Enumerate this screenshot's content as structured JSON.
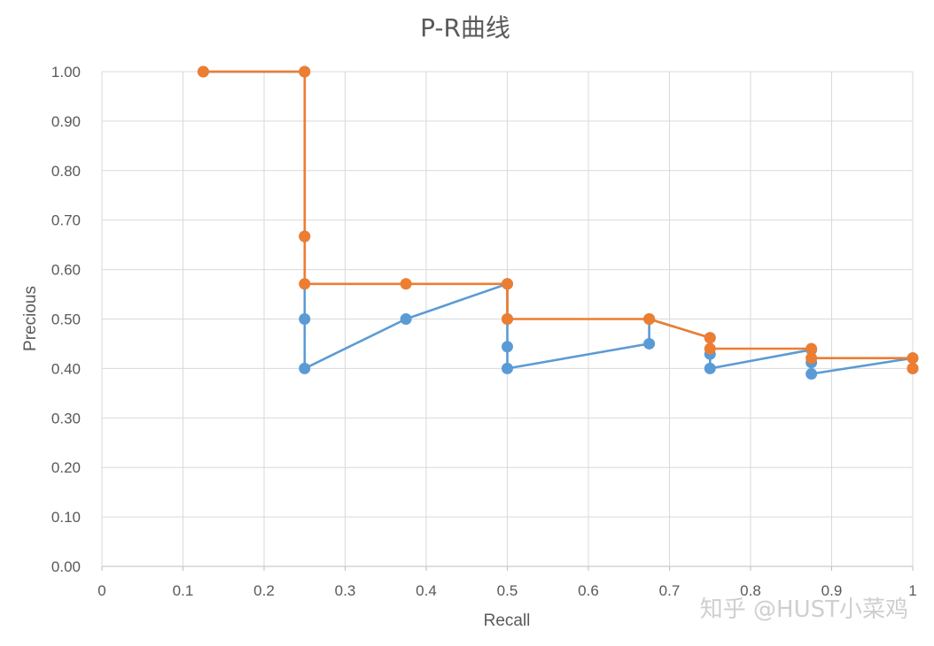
{
  "chart_data": {
    "type": "line",
    "title": "P-R曲线",
    "xlabel": "Recall",
    "ylabel": "Precious",
    "xlim": [
      0,
      1
    ],
    "ylim": [
      0,
      1
    ],
    "x_ticks": [
      "0",
      "0.1",
      "0.2",
      "0.3",
      "0.4",
      "0.5",
      "0.6",
      "0.7",
      "0.8",
      "0.9",
      "1"
    ],
    "y_ticks": [
      "0.00",
      "0.10",
      "0.20",
      "0.30",
      "0.40",
      "0.50",
      "0.60",
      "0.70",
      "0.80",
      "0.90",
      "1.00"
    ],
    "grid": true,
    "series": [
      {
        "color": "#5b9bd5",
        "points": [
          [
            0.125,
            1.0
          ],
          [
            0.25,
            1.0
          ],
          [
            0.25,
            0.667
          ],
          [
            0.25,
            0.5
          ],
          [
            0.25,
            0.4
          ],
          [
            0.375,
            0.5
          ],
          [
            0.5,
            0.571
          ],
          [
            0.5,
            0.5
          ],
          [
            0.5,
            0.444
          ],
          [
            0.5,
            0.4
          ],
          [
            0.675,
            0.45
          ],
          [
            0.675,
            0.5
          ],
          [
            0.75,
            0.462
          ],
          [
            0.75,
            0.429
          ],
          [
            0.75,
            0.4
          ],
          [
            0.875,
            0.438
          ],
          [
            0.875,
            0.412
          ],
          [
            0.875,
            0.389
          ],
          [
            1.0,
            0.421
          ],
          [
            1.0,
            0.4
          ]
        ]
      },
      {
        "color": "#ed7d31",
        "points": [
          [
            0.125,
            1.0
          ],
          [
            0.25,
            1.0
          ],
          [
            0.25,
            0.667
          ],
          [
            0.25,
            0.571
          ],
          [
            0.375,
            0.571
          ],
          [
            0.5,
            0.571
          ],
          [
            0.5,
            0.5
          ],
          [
            0.675,
            0.5
          ],
          [
            0.75,
            0.462
          ],
          [
            0.75,
            0.44
          ],
          [
            0.875,
            0.44
          ],
          [
            0.875,
            0.421
          ],
          [
            1.0,
            0.421
          ],
          [
            1.0,
            0.4
          ]
        ]
      }
    ]
  },
  "watermark": "知乎 @HUST小菜鸡"
}
